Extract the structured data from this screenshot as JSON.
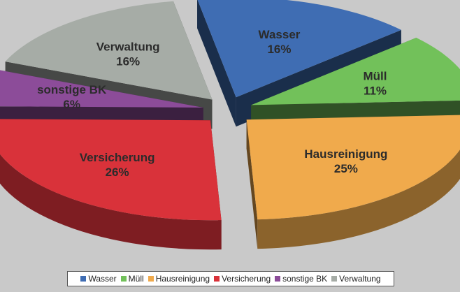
{
  "chart_data": {
    "type": "pie",
    "style": "3d-exploded",
    "legend_position": "bottom",
    "slices": [
      {
        "name": "Wasser",
        "value": 16,
        "label": "Wasser",
        "percent_text": "16%",
        "color": "#3f6db3"
      },
      {
        "name": "Müll",
        "value": 11,
        "label": "Müll",
        "percent_text": "11%",
        "color": "#72c15a"
      },
      {
        "name": "Hausreinigung",
        "value": 25,
        "label": "Hausreinigung",
        "percent_text": "25%",
        "color": "#f0aa4c"
      },
      {
        "name": "Versicherung",
        "value": 26,
        "label": "Versicherung",
        "percent_text": "26%",
        "color": "#d9323a"
      },
      {
        "name": "sonstige BK",
        "value": 6,
        "label": "sonstige BK",
        "percent_text": "6%",
        "color": "#8c4c99"
      },
      {
        "name": "Verwaltung",
        "value": 16,
        "label": "Verwaltung",
        "percent_text": "16%",
        "color": "#a6aca6"
      }
    ]
  }
}
